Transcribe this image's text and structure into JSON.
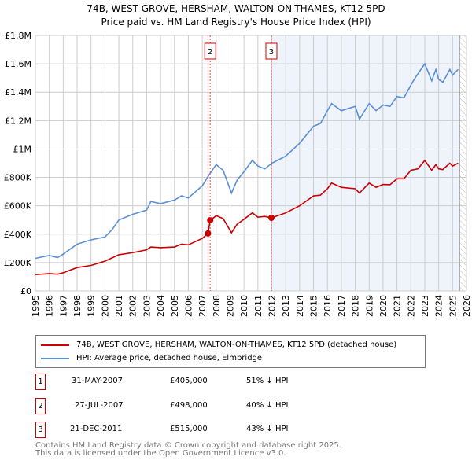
{
  "title": "74B, WEST GROVE, HERSHAM, WALTON-ON-THAMES, KT12 5PD",
  "subtitle": "Price paid vs. HM Land Registry's House Price Index (HPI)",
  "chart_data": {
    "type": "line",
    "xlim": [
      1995,
      2026
    ],
    "ylim": [
      0,
      1800000
    ],
    "yticks": [
      {
        "v": 0,
        "label": "£0"
      },
      {
        "v": 200000,
        "label": "£200K"
      },
      {
        "v": 400000,
        "label": "£400K"
      },
      {
        "v": 600000,
        "label": "£600K"
      },
      {
        "v": 800000,
        "label": "£800K"
      },
      {
        "v": 1000000,
        "label": "£1M"
      },
      {
        "v": 1200000,
        "label": "£1.2M"
      },
      {
        "v": 1400000,
        "label": "£1.4M"
      },
      {
        "v": 1600000,
        "label": "£1.6M"
      },
      {
        "v": 1800000,
        "label": "£1.8M"
      }
    ],
    "xticks": [
      "1995",
      "1996",
      "1997",
      "1998",
      "1999",
      "2000",
      "2001",
      "2002",
      "2003",
      "2004",
      "2005",
      "2006",
      "2007",
      "2008",
      "2009",
      "2010",
      "2011",
      "2012",
      "2013",
      "2014",
      "2015",
      "2016",
      "2017",
      "2018",
      "2019",
      "2020",
      "2021",
      "2022",
      "2023",
      "2024",
      "2025",
      "2026"
    ],
    "shaded_from": 2011.97,
    "hatched_from": 2025.5,
    "series": [
      {
        "name": "74B, WEST GROVE, HERSHAM, WALTON-ON-THAMES, KT12 5PD (detached house)",
        "color": "#cc0000",
        "x": [
          1995,
          1996,
          1996.6,
          1997,
          1998,
          1999,
          2000,
          2001,
          2002,
          2003,
          2003.3,
          2004,
          2005,
          2005.5,
          2006,
          2007,
          2007.41,
          2007.57,
          2008,
          2008.5,
          2009.1,
          2009.5,
          2010,
          2010.6,
          2011,
          2011.5,
          2011.97,
          2013,
          2014,
          2015,
          2015.5,
          2016,
          2016.3,
          2017,
          2018,
          2018.3,
          2019,
          2019.5,
          2020,
          2020.5,
          2021,
          2021.5,
          2022,
          2022.5,
          2023,
          2023.5,
          2023.8,
          2024,
          2024.3,
          2024.8,
          2025,
          2025.4
        ],
        "y": [
          115000,
          122000,
          118000,
          128000,
          165000,
          180000,
          210000,
          255000,
          270000,
          290000,
          310000,
          305000,
          310000,
          330000,
          325000,
          370000,
          405000,
          498000,
          530000,
          510000,
          410000,
          470000,
          505000,
          550000,
          520000,
          525000,
          515000,
          550000,
          600000,
          670000,
          675000,
          720000,
          760000,
          730000,
          720000,
          690000,
          760000,
          730000,
          750000,
          748000,
          790000,
          790000,
          850000,
          860000,
          920000,
          850000,
          890000,
          860000,
          855000,
          900000,
          880000,
          900000
        ]
      },
      {
        "name": "HPI: Average price, detached house, Elmbridge",
        "color": "#5b8fd4",
        "x": [
          1995,
          1996,
          1996.6,
          1997,
          1998,
          1999,
          2000,
          2000.5,
          2001,
          2002,
          2003,
          2003.3,
          2004,
          2005,
          2005.5,
          2006,
          2007,
          2007.5,
          2008,
          2008.5,
          2009.1,
          2009.5,
          2010,
          2010.6,
          2011,
          2011.5,
          2012,
          2013,
          2014,
          2015,
          2015.5,
          2016,
          2016.3,
          2017,
          2018,
          2018.3,
          2019,
          2019.5,
          2020,
          2020.5,
          2021,
          2021.5,
          2022,
          2022.3,
          2023,
          2023.5,
          2023.8,
          2024,
          2024.3,
          2024.8,
          2025,
          2025.4
        ],
        "y": [
          230000,
          250000,
          235000,
          260000,
          330000,
          360000,
          380000,
          430000,
          500000,
          540000,
          570000,
          630000,
          615000,
          640000,
          670000,
          655000,
          740000,
          820000,
          890000,
          850000,
          690000,
          780000,
          840000,
          920000,
          880000,
          860000,
          900000,
          950000,
          1040000,
          1160000,
          1180000,
          1270000,
          1320000,
          1270000,
          1300000,
          1210000,
          1320000,
          1270000,
          1310000,
          1300000,
          1370000,
          1360000,
          1450000,
          1500000,
          1600000,
          1480000,
          1560000,
          1490000,
          1470000,
          1560000,
          1520000,
          1560000
        ]
      }
    ],
    "sales": [
      {
        "label": "1",
        "x": 2007.41,
        "y": 405000,
        "date": "31-MAY-2007",
        "price": "£405,000",
        "hpi": "51% ↓ HPI"
      },
      {
        "label": "2",
        "x": 2007.57,
        "y": 498000,
        "date": "27-JUL-2007",
        "price": "£498,000",
        "hpi": "40% ↓ HPI"
      },
      {
        "label": "3",
        "x": 2011.97,
        "y": 515000,
        "date": "21-DEC-2011",
        "price": "£515,000",
        "hpi": "43% ↓ HPI"
      }
    ]
  },
  "legend": {
    "property": "74B, WEST GROVE, HERSHAM, WALTON-ON-THAMES, KT12 5PD (detached house)",
    "hpi": "HPI: Average price, detached house, Elmbridge"
  },
  "footer": {
    "line1": "Contains HM Land Registry data © Crown copyright and database right 2025.",
    "line2": "This data is licensed under the Open Government Licence v3.0."
  }
}
